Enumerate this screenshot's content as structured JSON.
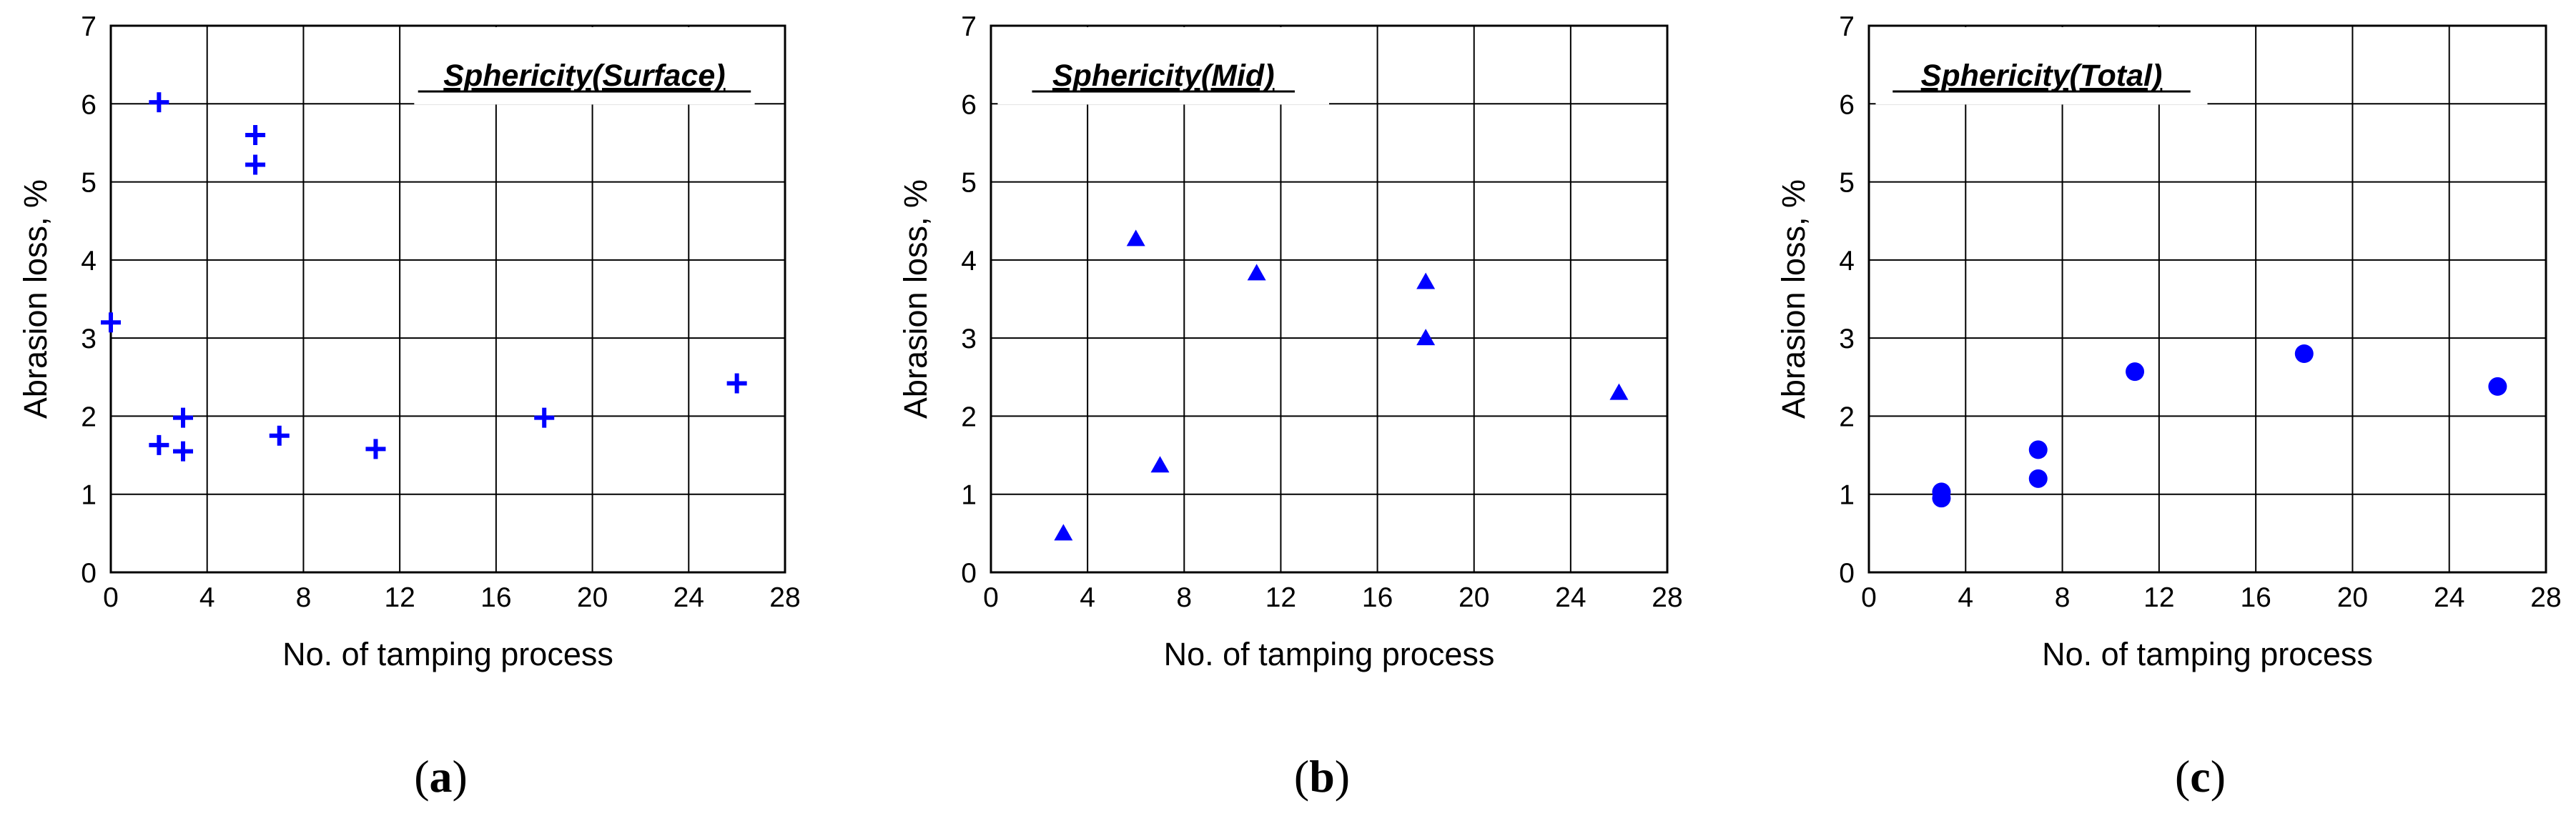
{
  "charts": [
    {
      "title": "Sphericity(Surface)",
      "title_position": "top-right",
      "caption": {
        "open": "(",
        "letter": "a",
        "close": ")"
      },
      "marker": "plus",
      "color": "#0000ff",
      "grid": true,
      "xlabel": "No. of tamping process",
      "ylabel": "Abrasion loss, %",
      "xlim": [
        0,
        28
      ],
      "ylim": [
        0,
        7
      ],
      "xticks": [
        0,
        4,
        8,
        12,
        16,
        20,
        24,
        28
      ],
      "yticks": [
        0,
        1,
        2,
        3,
        4,
        5,
        6,
        7
      ],
      "series": [
        {
          "name": "Sphericity(Surface)",
          "points": [
            [
              0,
              3.2
            ],
            [
              2,
              6.02
            ],
            [
              2,
              1.63
            ],
            [
              3,
              1.98
            ],
            [
              3,
              1.55
            ],
            [
              6,
              5.6
            ],
            [
              6,
              5.22
            ],
            [
              7,
              1.75
            ],
            [
              11,
              1.58
            ],
            [
              18,
              1.98
            ],
            [
              26,
              2.42
            ]
          ]
        }
      ]
    },
    {
      "title": "Sphericity(Mid)",
      "title_position": "top-left",
      "caption": {
        "open": "(",
        "letter": "b",
        "close": ")"
      },
      "marker": "triangle",
      "color": "#0000ff",
      "grid": true,
      "xlabel": "No. of tamping process",
      "ylabel": "Abrasion loss, %",
      "xlim": [
        0,
        28
      ],
      "ylim": [
        0,
        7
      ],
      "xticks": [
        0,
        4,
        8,
        12,
        16,
        20,
        24,
        28
      ],
      "yticks": [
        0,
        1,
        2,
        3,
        4,
        5,
        6,
        7
      ],
      "series": [
        {
          "name": "Sphericity(Mid)",
          "points": [
            [
              3,
              0.5
            ],
            [
              6,
              4.27
            ],
            [
              7,
              1.37
            ],
            [
              11,
              3.83
            ],
            [
              18,
              3.72
            ],
            [
              18,
              3.0
            ],
            [
              26,
              2.3
            ]
          ]
        }
      ]
    },
    {
      "title": "Sphericity(Total)",
      "title_position": "top-left",
      "caption": {
        "open": "(",
        "letter": "c",
        "close": ")"
      },
      "marker": "circle",
      "color": "#0000ff",
      "grid": true,
      "xlabel": "No. of tamping process",
      "ylabel": "Abrasion loss, %",
      "xlim": [
        0,
        28
      ],
      "ylim": [
        0,
        7
      ],
      "xticks": [
        0,
        4,
        8,
        12,
        16,
        20,
        24,
        28
      ],
      "yticks": [
        0,
        1,
        2,
        3,
        4,
        5,
        6,
        7
      ],
      "series": [
        {
          "name": "Sphericity(Total)",
          "points": [
            [
              3,
              1.03
            ],
            [
              3,
              0.95
            ],
            [
              7,
              1.57
            ],
            [
              7,
              1.2
            ],
            [
              11,
              2.57
            ],
            [
              18,
              2.8
            ],
            [
              26,
              2.38
            ]
          ]
        }
      ]
    }
  ],
  "chart_data": [
    {
      "type": "scatter",
      "title": "Sphericity(Surface)",
      "xlabel": "No. of tamping process",
      "ylabel": "Abrasion loss, %",
      "xlim": [
        0,
        28
      ],
      "ylim": [
        0,
        7
      ],
      "series": [
        {
          "name": "Sphericity(Surface)",
          "x": [
            0,
            2,
            2,
            3,
            3,
            6,
            6,
            7,
            11,
            18,
            26
          ],
          "y": [
            3.2,
            6.02,
            1.63,
            1.98,
            1.55,
            5.6,
            5.22,
            1.75,
            1.58,
            1.98,
            2.42
          ]
        }
      ]
    },
    {
      "type": "scatter",
      "title": "Sphericity(Mid)",
      "xlabel": "No. of tamping process",
      "ylabel": "Abrasion loss, %",
      "xlim": [
        0,
        28
      ],
      "ylim": [
        0,
        7
      ],
      "series": [
        {
          "name": "Sphericity(Mid)",
          "x": [
            3,
            6,
            7,
            11,
            18,
            18,
            26
          ],
          "y": [
            0.5,
            4.27,
            1.37,
            3.83,
            3.72,
            3.0,
            2.3
          ]
        }
      ]
    },
    {
      "type": "scatter",
      "title": "Sphericity(Total)",
      "xlabel": "No. of tamping process",
      "ylabel": "Abrasion loss, %",
      "xlim": [
        0,
        28
      ],
      "ylim": [
        0,
        7
      ],
      "series": [
        {
          "name": "Sphericity(Total)",
          "x": [
            3,
            3,
            7,
            7,
            11,
            18,
            26
          ],
          "y": [
            1.03,
            0.95,
            1.57,
            1.2,
            2.57,
            2.8,
            2.38
          ]
        }
      ]
    }
  ]
}
